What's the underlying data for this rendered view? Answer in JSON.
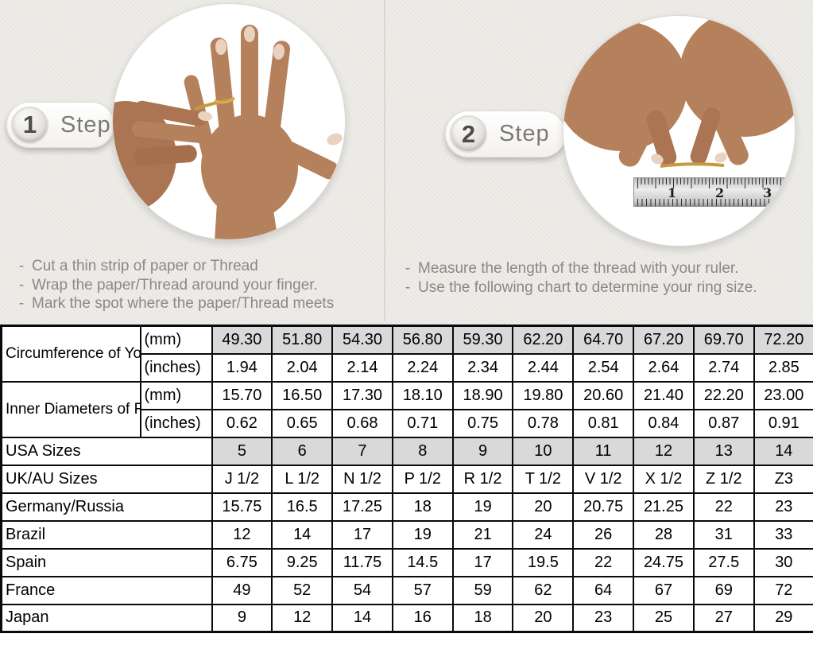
{
  "colors": {
    "page_background": "#e9e7e2",
    "shaded_cell": "#d9d9d9",
    "table_border": "#0a0a0a",
    "muted_text": "#8b8985",
    "gold_thread": "#c59a3f",
    "skin_tone": "#b5815d"
  },
  "steps": [
    {
      "number": "1",
      "label": "Step",
      "photo": "hand-with-thread-wrapped-around-ring-finger",
      "instructions": [
        "Cut a thin strip of paper or Thread",
        "Wrap the paper/Thread around your finger.",
        "Mark the spot where the paper/Thread meets"
      ]
    },
    {
      "number": "2",
      "label": "Step",
      "photo": "hands-measuring-thread-with-ruler",
      "ruler_numbers": [
        "1",
        "2",
        "3"
      ],
      "instructions": [
        "Measure the length of the thread with your ruler.",
        "Use the following chart to determine your ring size."
      ]
    }
  ],
  "table": {
    "groups": [
      {
        "label": "Circumference of Your Finger",
        "rows": [
          {
            "unit": "(mm)",
            "shaded": true,
            "values": [
              "49.30",
              "51.80",
              "54.30",
              "56.80",
              "59.30",
              "62.20",
              "64.70",
              "67.20",
              "69.70",
              "72.20"
            ]
          },
          {
            "unit": "(inches)",
            "shaded": false,
            "values": [
              "1.94",
              "2.04",
              "2.14",
              "2.24",
              "2.34",
              "2.44",
              "2.54",
              "2.64",
              "2.74",
              "2.85"
            ]
          }
        ]
      },
      {
        "label": "Inner Diameters of Rings",
        "rows": [
          {
            "unit": "(mm)",
            "shaded": false,
            "values": [
              "15.70",
              "16.50",
              "17.30",
              "18.10",
              "18.90",
              "19.80",
              "20.60",
              "21.40",
              "22.20",
              "23.00"
            ]
          },
          {
            "unit": "(inches)",
            "shaded": false,
            "values": [
              "0.62",
              "0.65",
              "0.68",
              "0.71",
              "0.75",
              "0.78",
              "0.81",
              "0.84",
              "0.87",
              "0.91"
            ]
          }
        ]
      }
    ],
    "regions": [
      {
        "label": "USA Sizes",
        "shaded": true,
        "values": [
          "5",
          "6",
          "7",
          "8",
          "9",
          "10",
          "11",
          "12",
          "13",
          "14"
        ]
      },
      {
        "label": "UK/AU Sizes",
        "shaded": false,
        "values": [
          "J 1/2",
          "L 1/2",
          "N 1/2",
          "P 1/2",
          "R 1/2",
          "T 1/2",
          "V 1/2",
          "X 1/2",
          "Z 1/2",
          "Z3"
        ]
      },
      {
        "label": "Germany/Russia",
        "shaded": false,
        "values": [
          "15.75",
          "16.5",
          "17.25",
          "18",
          "19",
          "20",
          "20.75",
          "21.25",
          "22",
          "23"
        ]
      },
      {
        "label": "Brazil",
        "shaded": false,
        "values": [
          "12",
          "14",
          "17",
          "19",
          "21",
          "24",
          "26",
          "28",
          "31",
          "33"
        ]
      },
      {
        "label": "Spain",
        "shaded": false,
        "values": [
          "6.75",
          "9.25",
          "11.75",
          "14.5",
          "17",
          "19.5",
          "22",
          "24.75",
          "27.5",
          "30"
        ]
      },
      {
        "label": "France",
        "shaded": false,
        "values": [
          "49",
          "52",
          "54",
          "57",
          "59",
          "62",
          "64",
          "67",
          "69",
          "72"
        ]
      },
      {
        "label": "Japan",
        "shaded": false,
        "values": [
          "9",
          "12",
          "14",
          "16",
          "18",
          "20",
          "23",
          "25",
          "27",
          "29"
        ]
      }
    ]
  }
}
